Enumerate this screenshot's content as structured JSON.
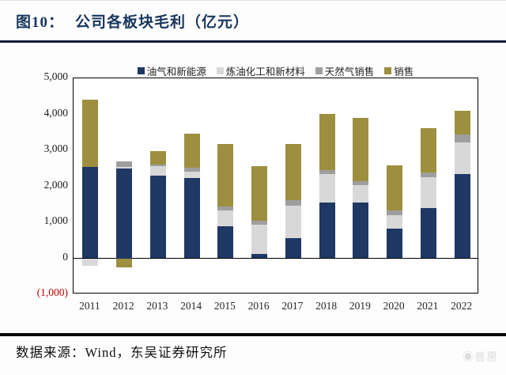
{
  "header": {
    "figure_label": "图10：",
    "title": "公司各板块毛利（亿元）"
  },
  "chart_data": {
    "type": "bar",
    "stacked": true,
    "title": "公司各板块毛利（亿元）",
    "xlabel": "",
    "ylabel": "",
    "ylim": [
      -1000,
      5000
    ],
    "grid": false,
    "legend_position": "top",
    "categories": [
      "2011",
      "2012",
      "2013",
      "2014",
      "2015",
      "2016",
      "2017",
      "2018",
      "2019",
      "2020",
      "2021",
      "2022"
    ],
    "series": [
      {
        "name": "油气和新能源",
        "color": "#1f3864",
        "values": [
          2540,
          2500,
          2300,
          2240,
          900,
          130,
          570,
          1550,
          1550,
          820,
          1400,
          2350
        ]
      },
      {
        "name": "炼油化工和新材料",
        "color": "#d8d8d8",
        "values": [
          -200,
          40,
          250,
          170,
          440,
          800,
          900,
          800,
          480,
          370,
          860,
          880
        ]
      },
      {
        "name": "天然气销售",
        "color": "#9e9e9e",
        "values": [
          0,
          150,
          50,
          110,
          110,
          110,
          150,
          110,
          110,
          140,
          130,
          220
        ]
      },
      {
        "name": "销售",
        "color": "#9d8f3f",
        "values": [
          1860,
          -250,
          370,
          950,
          1730,
          1510,
          1560,
          1560,
          1770,
          1260,
          1230,
          640
        ]
      }
    ],
    "yticks": [
      {
        "label": "5,000",
        "value": 5000,
        "negative": false
      },
      {
        "label": "4,000",
        "value": 4000,
        "negative": false
      },
      {
        "label": "3,000",
        "value": 3000,
        "negative": false
      },
      {
        "label": "2,000",
        "value": 2000,
        "negative": false
      },
      {
        "label": "1,000",
        "value": 1000,
        "negative": false
      },
      {
        "label": "0",
        "value": 0,
        "negative": false
      },
      {
        "label": "(1,000)",
        "value": -1000,
        "negative": true
      }
    ]
  },
  "footer": {
    "source": "数据来源：Wind，东吴证券研究所",
    "watermark": "◉普惠"
  }
}
